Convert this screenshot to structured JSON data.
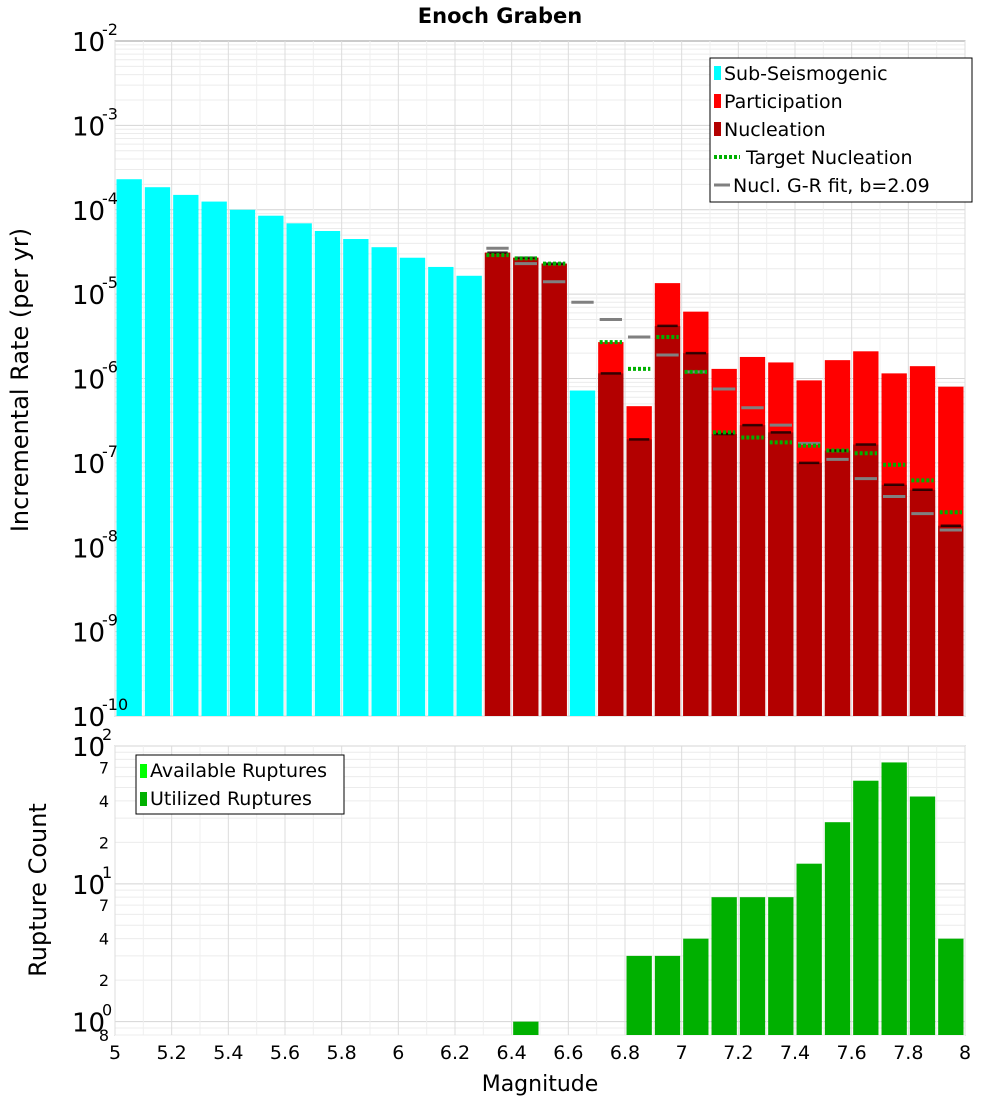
{
  "chart_data": [
    {
      "type": "bar",
      "title": "Enoch Graben",
      "xlabel": "",
      "ylabel": "Incremental Rate (per yr)",
      "yscale": "log",
      "xlim": [
        5,
        8
      ],
      "ylim": [
        1e-10,
        0.01
      ],
      "y_tick_exponents": [
        "-2",
        "-3",
        "-4",
        "-5",
        "-6",
        "-7",
        "-8",
        "-9",
        "-10"
      ],
      "y_tick_base": "10",
      "grid": true,
      "bin_width": 0.1,
      "legend": {
        "position": "top-right",
        "entries": [
          {
            "label": "Sub-Seismogenic",
            "color": "#00ffff",
            "kind": "bar"
          },
          {
            "label": "Participation",
            "color": "#ff0000",
            "kind": "bar"
          },
          {
            "label": "Nucleation",
            "color": "#b30000",
            "kind": "bar"
          },
          {
            "label": "Target Nucleation",
            "color": "#00b000",
            "kind": "dotted-line"
          },
          {
            "label": "Nucl. G-R fit, b=2.09",
            "color": "#808080",
            "kind": "line"
          }
        ]
      },
      "series": [
        {
          "name": "Sub-Seismogenic",
          "color": "#00ffff",
          "x": [
            5.05,
            5.15,
            5.25,
            5.35,
            5.45,
            5.55,
            5.65,
            5.75,
            5.85,
            5.95,
            6.05,
            6.15,
            6.25,
            6.65
          ],
          "values": [
            0.00023,
            0.000185,
            0.00015,
            0.000125,
            0.0001,
            8.5e-05,
            6.9e-05,
            5.6e-05,
            4.5e-05,
            3.6e-05,
            2.7e-05,
            2.1e-05,
            1.65e-05,
            7.2e-07
          ]
        },
        {
          "name": "Participation",
          "color": "#ff0000",
          "x": [
            6.35,
            6.45,
            6.55,
            6.75,
            6.85,
            6.95,
            7.05,
            7.15,
            7.25,
            7.35,
            7.45,
            7.55,
            7.65,
            7.75,
            7.85,
            7.95
          ],
          "values": [
            3.1e-05,
            2.7e-05,
            2.3e-05,
            2.7e-06,
            4.7e-07,
            1.35e-05,
            6.2e-06,
            1.3e-06,
            1.8e-06,
            1.55e-06,
            9.5e-07,
            1.65e-06,
            2.1e-06,
            1.15e-06,
            1.4e-06,
            8e-07
          ]
        },
        {
          "name": "Nucleation",
          "color": "#b30000",
          "x": [
            6.35,
            6.45,
            6.55,
            6.75,
            6.85,
            6.95,
            7.05,
            7.15,
            7.25,
            7.35,
            7.45,
            7.55,
            7.65,
            7.75,
            7.85,
            7.95
          ],
          "values": [
            3.1e-05,
            2.7e-05,
            2.3e-05,
            1.15e-06,
            1.9e-07,
            4.2e-06,
            2e-06,
            2.2e-07,
            2.8e-07,
            2.3e-07,
            1e-07,
            1.4e-07,
            1.65e-07,
            5.5e-08,
            4.8e-08,
            1.8e-08
          ]
        },
        {
          "name": "Target Nucleation",
          "color": "#00b000",
          "x": [
            6.35,
            6.45,
            6.55,
            6.75,
            6.85,
            6.95,
            7.05,
            7.15,
            7.25,
            7.35,
            7.45,
            7.55,
            7.65,
            7.75,
            7.85,
            7.95
          ],
          "values": [
            2.9e-05,
            2.65e-05,
            2.3e-05,
            2.7e-06,
            1.3e-06,
            3.1e-06,
            1.2e-06,
            2.3e-07,
            2e-07,
            1.75e-07,
            1.6e-07,
            1.4e-07,
            1.3e-07,
            9.5e-08,
            6.2e-08,
            2.6e-08
          ]
        },
        {
          "name": "Nucl. G-R fit, b=2.09",
          "color": "#808080",
          "x": [
            6.35,
            6.45,
            6.55,
            6.65,
            6.75,
            6.85,
            6.95,
            7.05,
            7.15,
            7.25,
            7.35,
            7.45,
            7.55,
            7.65,
            7.75,
            7.85,
            7.95
          ],
          "values": [
            3.5e-05,
            2.3e-05,
            1.4e-05,
            8e-06,
            5e-06,
            3.1e-06,
            1.9e-06,
            1.2e-06,
            7.5e-07,
            4.5e-07,
            2.8e-07,
            1.7e-07,
            1.1e-07,
            6.5e-08,
            4e-08,
            2.5e-08,
            1.6e-08
          ]
        }
      ]
    },
    {
      "type": "bar",
      "title": "",
      "xlabel": "Magnitude",
      "ylabel": "Rupture Count",
      "yscale": "log",
      "xlim": [
        5,
        8
      ],
      "ylim": [
        0.8,
        100
      ],
      "x_ticks": [
        "5",
        "5.2",
        "5.4",
        "5.6",
        "5.8",
        "6",
        "6.2",
        "6.4",
        "6.6",
        "6.8",
        "7",
        "7.2",
        "7.4",
        "7.6",
        "7.8",
        "8"
      ],
      "y_major_ticks": [
        {
          "base": "10",
          "exp": "2"
        },
        {
          "base": "10",
          "exp": "1"
        },
        {
          "base": "10",
          "exp": "0"
        }
      ],
      "y_minor_ticks": [
        "7",
        "4",
        "2",
        "7",
        "4",
        "2",
        "8"
      ],
      "grid": true,
      "bin_width": 0.1,
      "legend": {
        "position": "top-left",
        "entries": [
          {
            "label": "Available Ruptures",
            "color": "#00ff00",
            "kind": "bar"
          },
          {
            "label": "Utilized Ruptures",
            "color": "#00b000",
            "kind": "bar"
          }
        ]
      },
      "series": [
        {
          "name": "Utilized Ruptures",
          "color": "#00b000",
          "x": [
            6.45,
            6.85,
            6.95,
            7.05,
            7.15,
            7.25,
            7.35,
            7.45,
            7.55,
            7.65,
            7.75,
            7.85,
            7.95
          ],
          "values": [
            1,
            3,
            3,
            4,
            8,
            8,
            8,
            14,
            28,
            56,
            76,
            43,
            4
          ]
        }
      ]
    }
  ]
}
